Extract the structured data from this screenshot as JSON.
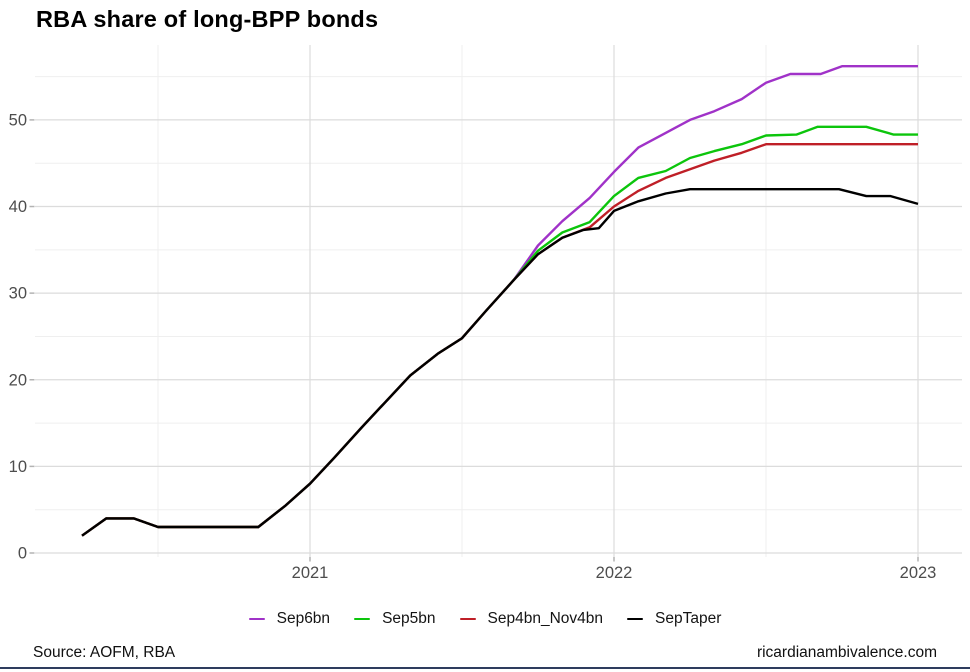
{
  "title": "RBA share of long-BPP bonds",
  "footer": {
    "source": "Source: AOFM, RBA",
    "site": "ricardianambivalence.com"
  },
  "colors": {
    "background": "#ffffff",
    "grid_major": "#dcdcdc",
    "grid_minor": "#efefef",
    "axis_text": "#4d4d4d",
    "tick": "#b3b3b3",
    "title_text": "#000000",
    "bottom_rule": "#2e3c5e"
  },
  "chart_data": {
    "type": "line",
    "title": "RBA share of long-BPP bonds",
    "xlabel": "",
    "ylabel": "",
    "x_unit": "date (monthly, fractional years, Apr 2020 - Jan 2023)",
    "xlim": [
      2020.2,
      2023.05
    ],
    "ylim": [
      0,
      58
    ],
    "grid": true,
    "legend_position": "bottom",
    "y_ticks": [
      0,
      10,
      20,
      30,
      40,
      50
    ],
    "y_minor": [
      5,
      15,
      25,
      35,
      45,
      55
    ],
    "x_ticks": [
      {
        "value": 2021,
        "label": "2021"
      },
      {
        "value": 2022,
        "label": "2022"
      },
      {
        "value": 2023,
        "label": "2023"
      }
    ],
    "x_minor": [
      2020.5,
      2021.5,
      2022.5
    ],
    "series": [
      {
        "name": "Sep6bn",
        "color": "#a032c8",
        "points": [
          [
            2020.25,
            2
          ],
          [
            2020.33,
            4
          ],
          [
            2020.42,
            4
          ],
          [
            2020.5,
            3
          ],
          [
            2020.83,
            3
          ],
          [
            2020.92,
            5.5
          ],
          [
            2021,
            8
          ],
          [
            2021.08,
            11
          ],
          [
            2021.17,
            14.5
          ],
          [
            2021.25,
            17.5
          ],
          [
            2021.33,
            20.5
          ],
          [
            2021.42,
            23
          ],
          [
            2021.5,
            24.8
          ],
          [
            2021.58,
            28
          ],
          [
            2021.67,
            31.5
          ],
          [
            2021.75,
            35.5
          ],
          [
            2021.83,
            38.3
          ],
          [
            2021.92,
            41
          ],
          [
            2022,
            44
          ],
          [
            2022.08,
            46.8
          ],
          [
            2022.17,
            48.5
          ],
          [
            2022.25,
            50
          ],
          [
            2022.33,
            51
          ],
          [
            2022.42,
            52.4
          ],
          [
            2022.5,
            54.3
          ],
          [
            2022.58,
            55.3
          ],
          [
            2022.68,
            55.3
          ],
          [
            2022.75,
            56.2
          ],
          [
            2023,
            56.2
          ]
        ]
      },
      {
        "name": "Sep5bn",
        "color": "#0cc50c",
        "points": [
          [
            2020.25,
            2
          ],
          [
            2020.33,
            4
          ],
          [
            2020.42,
            4
          ],
          [
            2020.5,
            3
          ],
          [
            2020.83,
            3
          ],
          [
            2020.92,
            5.5
          ],
          [
            2021,
            8
          ],
          [
            2021.08,
            11
          ],
          [
            2021.17,
            14.5
          ],
          [
            2021.25,
            17.5
          ],
          [
            2021.33,
            20.5
          ],
          [
            2021.42,
            23
          ],
          [
            2021.5,
            24.8
          ],
          [
            2021.58,
            28
          ],
          [
            2021.67,
            31.5
          ],
          [
            2021.75,
            34.9
          ],
          [
            2021.83,
            37
          ],
          [
            2021.92,
            38.2
          ],
          [
            2022,
            41.2
          ],
          [
            2022.08,
            43.3
          ],
          [
            2022.17,
            44.1
          ],
          [
            2022.25,
            45.6
          ],
          [
            2022.33,
            46.4
          ],
          [
            2022.42,
            47.2
          ],
          [
            2022.5,
            48.2
          ],
          [
            2022.6,
            48.3
          ],
          [
            2022.67,
            49.2
          ],
          [
            2022.83,
            49.2
          ],
          [
            2022.92,
            48.3
          ],
          [
            2023,
            48.3
          ]
        ]
      },
      {
        "name": "Sep4bn_Nov4bn",
        "color": "#bf1f27",
        "points": [
          [
            2020.25,
            2
          ],
          [
            2020.33,
            4
          ],
          [
            2020.42,
            4
          ],
          [
            2020.5,
            3
          ],
          [
            2020.83,
            3
          ],
          [
            2020.92,
            5.5
          ],
          [
            2021,
            8
          ],
          [
            2021.08,
            11
          ],
          [
            2021.17,
            14.5
          ],
          [
            2021.25,
            17.5
          ],
          [
            2021.33,
            20.5
          ],
          [
            2021.42,
            23
          ],
          [
            2021.5,
            24.8
          ],
          [
            2021.58,
            28
          ],
          [
            2021.67,
            31.5
          ],
          [
            2021.75,
            34.5
          ],
          [
            2021.83,
            36.4
          ],
          [
            2021.92,
            37.6
          ],
          [
            2022,
            40
          ],
          [
            2022.08,
            41.8
          ],
          [
            2022.17,
            43.3
          ],
          [
            2022.25,
            44.3
          ],
          [
            2022.33,
            45.3
          ],
          [
            2022.42,
            46.2
          ],
          [
            2022.5,
            47.2
          ],
          [
            2023,
            47.2
          ]
        ]
      },
      {
        "name": "SepTaper",
        "color": "#000000",
        "points": [
          [
            2020.25,
            2
          ],
          [
            2020.33,
            4
          ],
          [
            2020.42,
            4
          ],
          [
            2020.5,
            3
          ],
          [
            2020.83,
            3
          ],
          [
            2020.92,
            5.5
          ],
          [
            2021,
            8
          ],
          [
            2021.08,
            11
          ],
          [
            2021.17,
            14.5
          ],
          [
            2021.25,
            17.5
          ],
          [
            2021.33,
            20.5
          ],
          [
            2021.42,
            23
          ],
          [
            2021.5,
            24.8
          ],
          [
            2021.58,
            28
          ],
          [
            2021.67,
            31.5
          ],
          [
            2021.75,
            34.5
          ],
          [
            2021.83,
            36.4
          ],
          [
            2021.9,
            37.3
          ],
          [
            2021.95,
            37.5
          ],
          [
            2022,
            39.5
          ],
          [
            2022.08,
            40.6
          ],
          [
            2022.17,
            41.5
          ],
          [
            2022.25,
            42
          ],
          [
            2022.74,
            42
          ],
          [
            2022.83,
            41.2
          ],
          [
            2022.91,
            41.2
          ],
          [
            2023,
            40.3
          ]
        ]
      }
    ]
  }
}
